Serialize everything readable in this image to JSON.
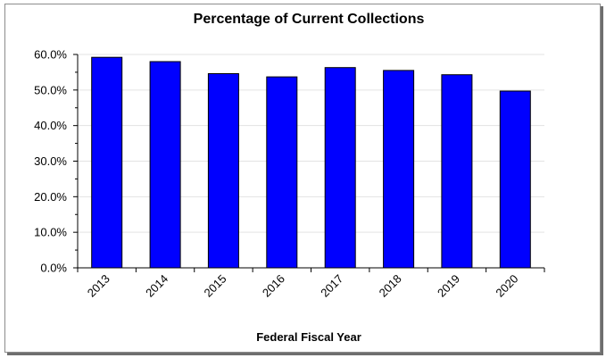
{
  "chart_data": {
    "type": "bar",
    "title": "Percentage of Current Collections",
    "xlabel": "Federal Fiscal Year",
    "ylabel": "",
    "categories": [
      "2013",
      "2014",
      "2015",
      "2016",
      "2017",
      "2018",
      "2019",
      "2020"
    ],
    "values": [
      59.2,
      58.0,
      54.6,
      53.7,
      56.3,
      55.5,
      54.3,
      49.7
    ],
    "ylim": [
      0,
      60
    ],
    "yticks": [
      0,
      10,
      20,
      30,
      40,
      50,
      60
    ],
    "ytick_labels": [
      "0.0%",
      "10.0%",
      "20.0%",
      "30.0%",
      "40.0%",
      "50.0%",
      "60.0%"
    ],
    "grid": true,
    "legend": "none",
    "colors": {
      "bar_fill": "#0000ff",
      "bar_stroke": "#000000",
      "grid": "#e3e3e3",
      "axis": "#000000"
    }
  }
}
